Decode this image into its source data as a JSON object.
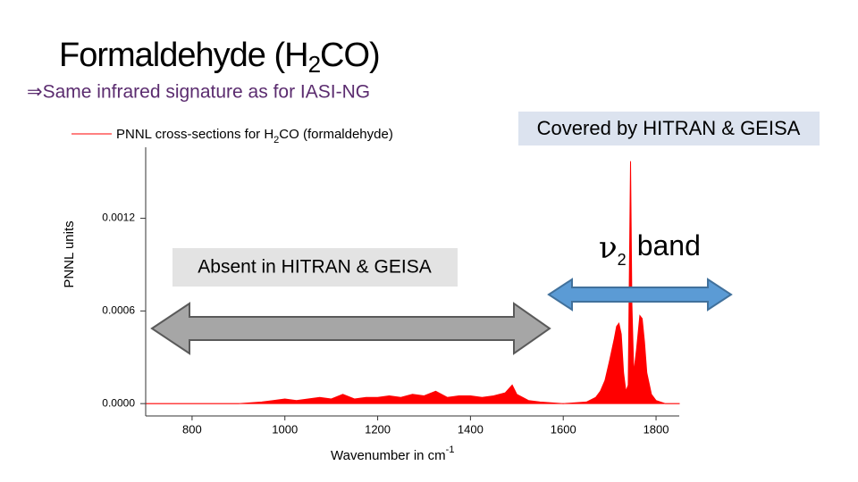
{
  "slide_title_parts": [
    "Formaldehyde (H",
    "2",
    "CO)"
  ],
  "bullet": "⇒Same infrared signature as for IASI-NG",
  "chart_data": {
    "type": "area",
    "legend_parts": [
      "PNNL cross-sections for H",
      "2",
      "CO (formaldehyde)"
    ],
    "x_label_parts": [
      "Wavenumber in cm",
      "-1"
    ],
    "y_label": "PNNL units",
    "xlim": [
      700,
      1850
    ],
    "ylim": [
      -8e-05,
      0.00166
    ],
    "xticks": [
      800,
      1000,
      1200,
      1400,
      1600,
      1800
    ],
    "yticks": [
      {
        "value": 0,
        "label": "0.0000"
      },
      {
        "value": 0.0006,
        "label": "0.0006"
      },
      {
        "value": 0.0012,
        "label": "0.0012"
      }
    ],
    "x": [
      700,
      750,
      800,
      850,
      900,
      950,
      975,
      1000,
      1025,
      1050,
      1075,
      1100,
      1125,
      1150,
      1175,
      1200,
      1225,
      1250,
      1275,
      1300,
      1325,
      1350,
      1375,
      1400,
      1425,
      1450,
      1475,
      1490,
      1500,
      1525,
      1550,
      1600,
      1650,
      1670,
      1680,
      1690,
      1700,
      1710,
      1715,
      1720,
      1725,
      1730,
      1735,
      1740,
      1745,
      1748,
      1752,
      1758,
      1765,
      1770,
      1775,
      1780,
      1790,
      1800,
      1820,
      1850
    ],
    "series": [
      {
        "name": "PNNL cross-sections for H2CO (formaldehyde)",
        "color": "#ff0000",
        "values": [
          0,
          0,
          0,
          0,
          0,
          1e-05,
          2e-05,
          3e-05,
          2e-05,
          3e-05,
          4e-05,
          3e-05,
          6e-05,
          3e-05,
          4e-05,
          4e-05,
          5e-05,
          4e-05,
          6e-05,
          5e-05,
          8e-05,
          4e-05,
          5e-05,
          5e-05,
          4e-05,
          5e-05,
          7e-05,
          0.00012,
          6e-05,
          2e-05,
          1e-05,
          0,
          1e-05,
          4e-05,
          8e-05,
          0.00015,
          0.00028,
          0.00042,
          0.0005,
          0.00052,
          0.00045,
          0.0002,
          8e-05,
          0.00012,
          0.00157,
          0.00065,
          0.0002,
          0.00035,
          0.00057,
          0.00055,
          0.0004,
          0.0002,
          6e-05,
          2e-05,
          0,
          0
        ]
      }
    ],
    "annotations": {
      "covered": "Covered by HITRAN & GEISA",
      "absent": "Absent in HITRAN & GEISA",
      "band_parts": [
        "ν",
        "2",
        "band"
      ]
    }
  }
}
